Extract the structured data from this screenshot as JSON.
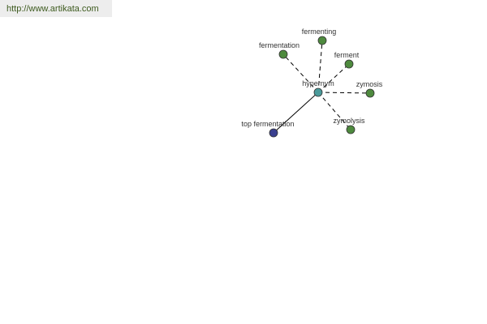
{
  "banner": {
    "link_text": "http://www.artikata.com"
  },
  "graph": {
    "center": {
      "label": "hypernym",
      "color": "#4a9a9a"
    },
    "nodes": [
      {
        "label": "fermenting",
        "relation": "dashed",
        "color": "#4e8a3e"
      },
      {
        "label": "fermentation",
        "relation": "dashed",
        "color": "#4e8a3e"
      },
      {
        "label": "ferment",
        "relation": "dashed",
        "color": "#4e8a3e"
      },
      {
        "label": "zymosis",
        "relation": "dashed",
        "color": "#4e8a3e"
      },
      {
        "label": "zymolysis",
        "relation": "dashed",
        "color": "#4e8a3e"
      },
      {
        "label": "top fermentation",
        "relation": "solid",
        "color": "#3a3f8f"
      }
    ]
  }
}
